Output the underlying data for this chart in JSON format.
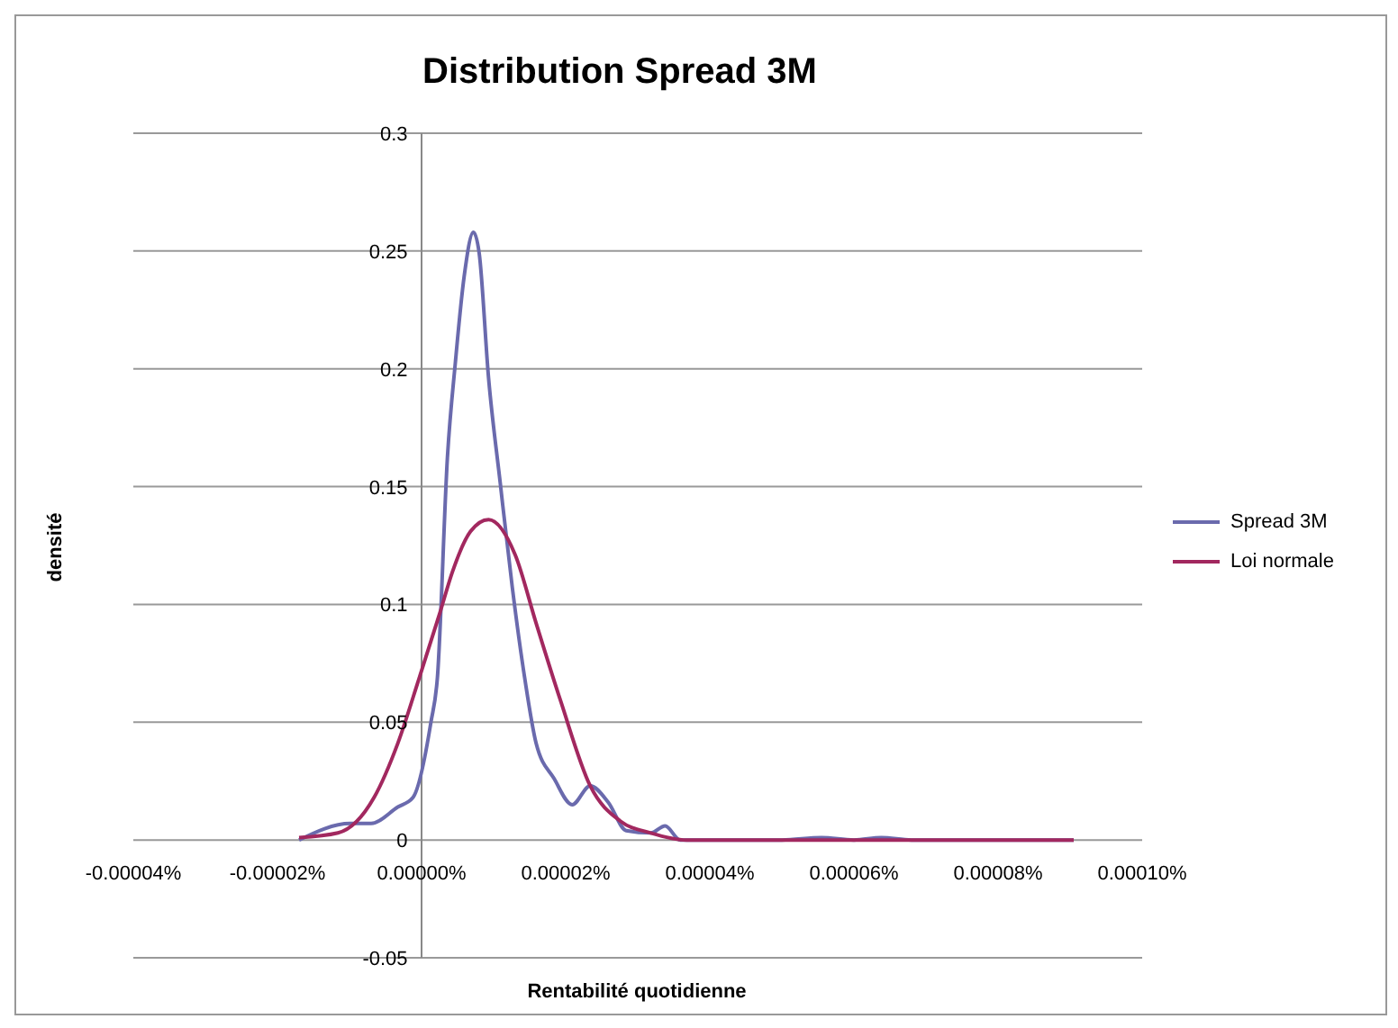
{
  "chart_data": {
    "type": "line",
    "title": "Distribution Spread 3M",
    "xlabel": "Rentabilité quotidienne",
    "ylabel": "densité",
    "xlim": [
      -4e-05,
      0.0001
    ],
    "xticks": [
      {
        "value": -4e-05,
        "label": "-0.00004%"
      },
      {
        "value": -2e-05,
        "label": "-0.00002%"
      },
      {
        "value": 0,
        "label": "0.00000%"
      },
      {
        "value": 2e-05,
        "label": "0.00002%"
      },
      {
        "value": 4e-05,
        "label": "0.00004%"
      },
      {
        "value": 6e-05,
        "label": "0.00006%"
      },
      {
        "value": 8e-05,
        "label": "0.00008%"
      },
      {
        "value": 0.0001,
        "label": "0.00010%"
      }
    ],
    "ylim": [
      -0.05,
      0.3
    ],
    "yticks": [
      -0.05,
      0,
      0.05,
      0.1,
      0.15,
      0.2,
      0.25,
      0.3
    ],
    "grid": "y",
    "legend": "right",
    "marker": "none",
    "line_style": "solid",
    "series": [
      {
        "name": "Spread 3M",
        "color": "#6a6aad",
        "x": [
          -1.7e-05,
          -9.9e-06,
          -7e-06,
          -3.3e-06,
          -1.2e-06,
          1.3e-06,
          2.2e-06,
          3.6e-06,
          4.7e-06,
          5.9e-06,
          7.2e-06,
          8e-06,
          9.3e-06,
          1.09e-05,
          1.26e-05,
          1.43e-05,
          1.59e-05,
          1.84e-05,
          2.09e-05,
          2.34e-05,
          2.59e-05,
          2.84e-05,
          3.18e-05,
          3.38e-05,
          3.59e-05,
          5e-05,
          5.55e-05,
          6e-05,
          6.38e-05,
          6.8e-05,
          9.05e-05
        ],
        "values": [
          0,
          0.007,
          0.007,
          0.014,
          0.018,
          0.05,
          0.069,
          0.163,
          0.203,
          0.239,
          0.258,
          0.249,
          0.196,
          0.152,
          0.107,
          0.069,
          0.041,
          0.026,
          0.015,
          0.023,
          0.016,
          0.004,
          0.003,
          0.006,
          0,
          0,
          0.001,
          0,
          0.001,
          0,
          0
        ]
      },
      {
        "name": "Loi normale",
        "color": "#a2285f",
        "x": [
          -1.7e-05,
          -1.16e-05,
          -6.6e-06,
          -3.3e-06,
          -3e-07,
          2.6e-06,
          4.3e-06,
          6.8e-06,
          9.3e-06,
          1.3e-05,
          1.59e-05,
          1.93e-05,
          2.34e-05,
          2.76e-05,
          3.18e-05,
          3.68e-05,
          9.05e-05
        ],
        "values": [
          0.001,
          0.003,
          0.018,
          0.041,
          0.069,
          0.097,
          0.114,
          0.131,
          0.136,
          0.121,
          0.092,
          0.059,
          0.023,
          0.008,
          0.003,
          0,
          0
        ]
      }
    ]
  }
}
